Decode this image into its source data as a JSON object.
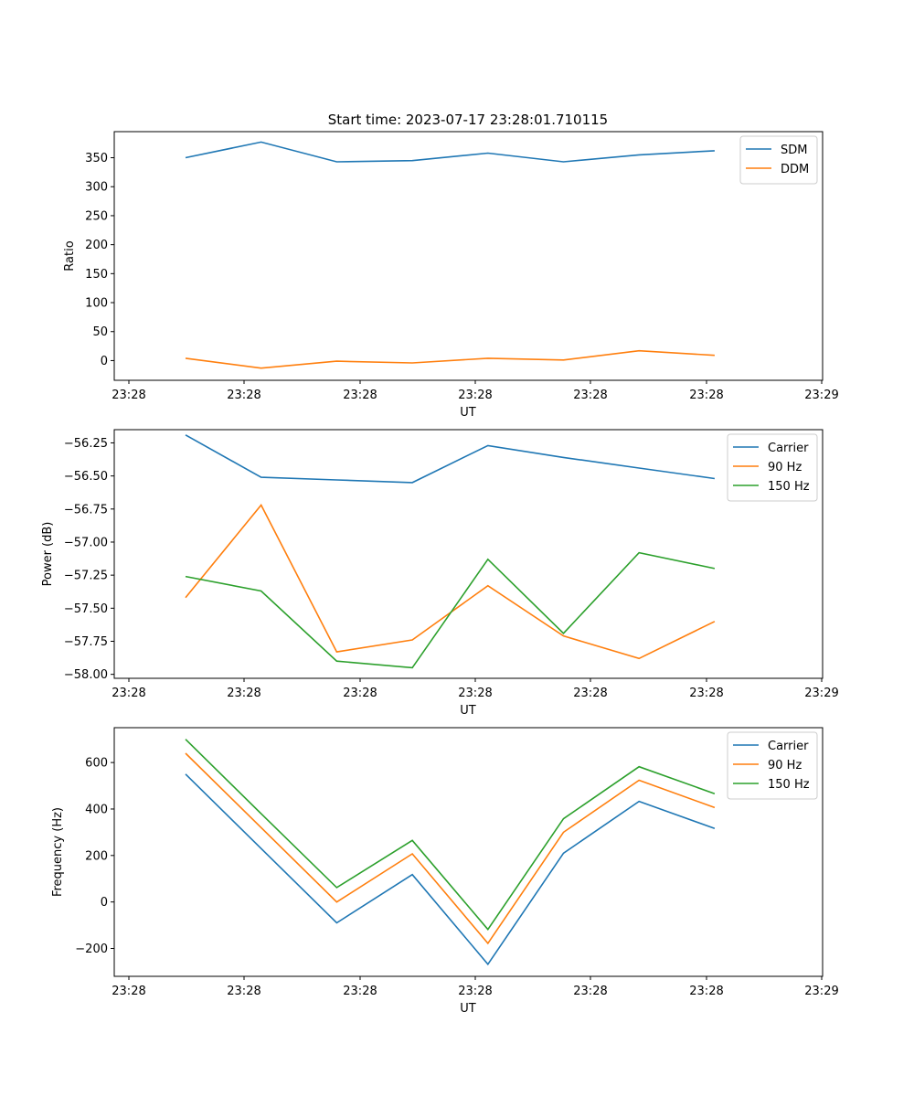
{
  "chart_data": {
    "title": "Start time: 2023-07-17 23:28:01.710115",
    "plots": [
      {
        "type": "line",
        "xlabel": "UT",
        "ylabel": "Ratio",
        "xticks": [
          "23:28",
          "23:28",
          "23:28",
          "23:28",
          "23:28",
          "23:28",
          "23:29"
        ],
        "ylim": [
          -34,
          395
        ],
        "yticks": [
          0,
          50,
          100,
          150,
          200,
          250,
          300,
          350
        ],
        "legend": "top-right",
        "series": [
          {
            "name": "SDM",
            "color": "#1f77b4",
            "values": [
              350,
              377,
              343,
              345,
              358,
              343,
              355,
              362
            ]
          },
          {
            "name": "DDM",
            "color": "#ff7f0e",
            "values": [
              4,
              -13,
              -1,
              -4,
              4,
              1,
              17,
              9
            ]
          }
        ]
      },
      {
        "type": "line",
        "xlabel": "UT",
        "ylabel": "Power (dB)",
        "xticks": [
          "23:28",
          "23:28",
          "23:28",
          "23:28",
          "23:28",
          "23:28",
          "23:29"
        ],
        "ylim": [
          -58.03,
          -56.15
        ],
        "yticks": [
          -58.0,
          -57.75,
          -57.5,
          -57.25,
          -57.0,
          -56.75,
          -56.5,
          -56.25
        ],
        "legend": "top-right",
        "series": [
          {
            "name": "Carrier",
            "color": "#1f77b4",
            "values": [
              -56.19,
              -56.51,
              -56.53,
              -56.55,
              -56.27,
              -56.36,
              -56.44,
              -56.52
            ]
          },
          {
            "name": "90 Hz",
            "color": "#ff7f0e",
            "values": [
              -57.42,
              -56.72,
              -57.83,
              -57.74,
              -57.33,
              -57.71,
              -57.88,
              -57.6
            ]
          },
          {
            "name": "150 Hz",
            "color": "#2ca02c",
            "values": [
              -57.26,
              -57.37,
              -57.9,
              -57.95,
              -57.13,
              -57.69,
              -57.08,
              -57.2
            ]
          }
        ]
      },
      {
        "type": "line",
        "xlabel": "UT",
        "ylabel": "Frequency (Hz)",
        "xticks": [
          "23:28",
          "23:28",
          "23:28",
          "23:28",
          "23:28",
          "23:28",
          "23:29"
        ],
        "ylim": [
          -320,
          750
        ],
        "yticks": [
          -200,
          0,
          200,
          400,
          600
        ],
        "legend": "top-right",
        "series": [
          {
            "name": "Carrier",
            "color": "#1f77b4",
            "values": [
              550,
              230,
              -90,
              118,
              -268,
              210,
              433,
              316
            ]
          },
          {
            "name": "90 Hz",
            "color": "#ff7f0e",
            "values": [
              640,
              320,
              0,
              207,
              -178,
              300,
              524,
              406
            ]
          },
          {
            "name": "150 Hz",
            "color": "#2ca02c",
            "values": [
              700,
              380,
              62,
              265,
              -118,
              358,
              582,
              466
            ]
          }
        ]
      }
    ]
  }
}
